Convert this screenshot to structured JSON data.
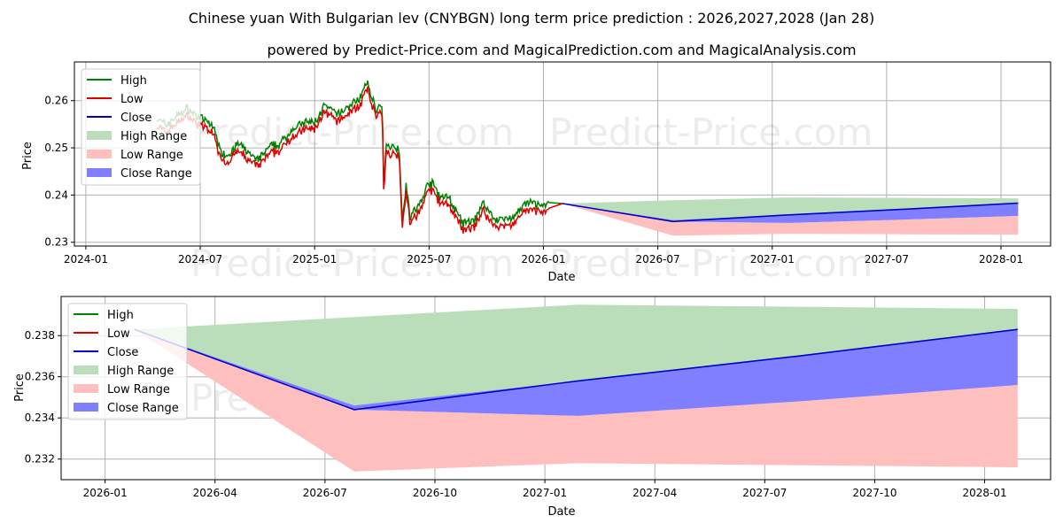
{
  "title_line1": "Chinese yuan With Bulgarian lev (CNYBGN) long term price prediction : 2026,2027,2028 (Jan 28)",
  "title_line2": "powered by Predict-Price.com and MagicalPrediction.com and MagicalAnalysis.com",
  "watermark": "Predict-Price.com",
  "colors": {
    "high": "#008000",
    "low": "#e00000",
    "close": "#0000cc",
    "high_range": "#b9deb9",
    "low_range": "#ffbfbf",
    "close_range": "#7f7fff"
  },
  "chart_data": [
    {
      "type": "line",
      "title": "",
      "xlabel": "Date",
      "ylabel": "Price",
      "x_ticks": [
        "2024-01",
        "2024-07",
        "2025-01",
        "2025-07",
        "2026-01",
        "2026-07",
        "2027-01",
        "2027-07",
        "2028-01"
      ],
      "y_ticks": [
        "0.23",
        "0.24",
        "0.25",
        "0.26"
      ],
      "xlim_months": [
        -0.6,
        50.6
      ],
      "ylim": [
        0.2292,
        0.2682
      ],
      "grid": true,
      "legend": {
        "position": "top-left",
        "entries": [
          "High",
          "Low",
          "Close",
          "High Range",
          "Low Range",
          "Close Range"
        ]
      },
      "history": {
        "start_month": 3.7,
        "end_month": 24.3,
        "anchors": [
          [
            3.7,
            0.2553
          ],
          [
            4.2,
            0.254
          ],
          [
            4.8,
            0.256
          ],
          [
            5.3,
            0.2575
          ],
          [
            5.9,
            0.2556
          ],
          [
            6.3,
            0.2548
          ],
          [
            6.8,
            0.253
          ],
          [
            7.0,
            0.2488
          ],
          [
            7.4,
            0.2475
          ],
          [
            8.0,
            0.25
          ],
          [
            8.6,
            0.2478
          ],
          [
            9.0,
            0.2465
          ],
          [
            9.6,
            0.2492
          ],
          [
            10.2,
            0.25
          ],
          [
            10.8,
            0.253
          ],
          [
            11.5,
            0.2545
          ],
          [
            12.0,
            0.2545
          ],
          [
            12.5,
            0.258
          ],
          [
            13.2,
            0.2562
          ],
          [
            13.9,
            0.2582
          ],
          [
            14.4,
            0.2598
          ],
          [
            14.75,
            0.263
          ],
          [
            15.2,
            0.2575
          ],
          [
            15.55,
            0.258
          ],
          [
            15.62,
            0.241
          ],
          [
            15.75,
            0.2495
          ],
          [
            16.2,
            0.2495
          ],
          [
            16.45,
            0.2485
          ],
          [
            16.6,
            0.2335
          ],
          [
            16.8,
            0.242
          ],
          [
            17.0,
            0.2345
          ],
          [
            17.5,
            0.237
          ],
          [
            18.0,
            0.242
          ],
          [
            18.3,
            0.241
          ],
          [
            18.6,
            0.2385
          ],
          [
            19.0,
            0.239
          ],
          [
            19.3,
            0.2365
          ],
          [
            19.8,
            0.233
          ],
          [
            20.4,
            0.2338
          ],
          [
            20.8,
            0.2375
          ],
          [
            21.4,
            0.2342
          ],
          [
            22.0,
            0.234
          ],
          [
            22.4,
            0.2345
          ],
          [
            22.8,
            0.2362
          ],
          [
            23.2,
            0.2375
          ],
          [
            23.6,
            0.2372
          ],
          [
            24.0,
            0.2368
          ],
          [
            24.3,
            0.2372
          ]
        ],
        "end_value": 0.2382
      },
      "forecast": {
        "months": [
          25.0,
          30.8,
          36.9,
          42.9,
          48.9
        ],
        "high": [
          0.2382,
          0.2389,
          0.2395,
          0.2394,
          0.2393
        ],
        "low": [
          0.2382,
          0.2314,
          0.2318,
          0.2317,
          0.2316
        ],
        "close": [
          0.2382,
          0.2344,
          0.2358,
          0.237,
          0.2383
        ],
        "close_range_low": [
          0.2382,
          0.2344,
          0.2341,
          0.2348,
          0.2356
        ],
        "close_range_high": [
          0.2382,
          0.2347,
          0.2358,
          0.237,
          0.2383
        ]
      }
    },
    {
      "type": "area",
      "title": "",
      "xlabel": "Date",
      "ylabel": "Price",
      "x_ticks": [
        "2026-01",
        "2026-04",
        "2026-07",
        "2026-10",
        "2027-01",
        "2027-04",
        "2027-07",
        "2027-10",
        "2028-01"
      ],
      "y_ticks": [
        "0.232",
        "0.234",
        "0.236",
        "0.238"
      ],
      "xlim_months": [
        -1.2,
        25.8
      ],
      "ylim": [
        0.231,
        0.2399
      ],
      "grid": true,
      "legend": {
        "position": "top-left",
        "entries": [
          "High",
          "Low",
          "Close",
          "High Range",
          "Low Range",
          "Close Range"
        ]
      },
      "forecast": {
        "months": [
          0.8,
          6.8,
          12.9,
          18.9,
          24.9
        ],
        "high": [
          0.2383,
          0.2389,
          0.2395,
          0.2394,
          0.2393
        ],
        "low": [
          0.2383,
          0.2314,
          0.2318,
          0.2317,
          0.2316
        ],
        "close": [
          0.2383,
          0.2344,
          0.2358,
          0.237,
          0.2383
        ],
        "close_range_low": [
          0.2383,
          0.2344,
          0.2341,
          0.2348,
          0.2356
        ],
        "close_range_high": [
          0.2383,
          0.2346,
          0.2358,
          0.237,
          0.2383
        ]
      }
    }
  ]
}
